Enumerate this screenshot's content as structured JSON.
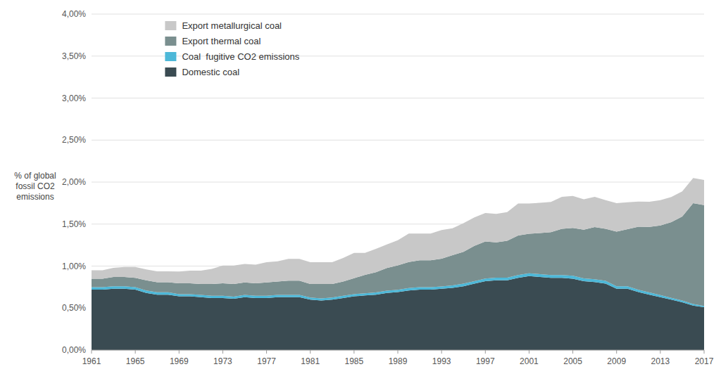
{
  "chart_data": {
    "type": "area",
    "stacked": true,
    "y_label": "% of global\nfossil CO2\nemissions",
    "x": [
      1961,
      1962,
      1963,
      1964,
      1965,
      1966,
      1967,
      1968,
      1969,
      1970,
      1971,
      1972,
      1973,
      1974,
      1975,
      1976,
      1977,
      1978,
      1979,
      1980,
      1981,
      1982,
      1983,
      1984,
      1985,
      1986,
      1987,
      1988,
      1989,
      1990,
      1991,
      1992,
      1993,
      1994,
      1995,
      1996,
      1997,
      1998,
      1999,
      2000,
      2001,
      2002,
      2003,
      2004,
      2005,
      2006,
      2007,
      2008,
      2009,
      2010,
      2011,
      2012,
      2013,
      2014,
      2015,
      2016,
      2017
    ],
    "series": [
      {
        "name": "Domestic coal",
        "color": "#3a4b52",
        "values": [
          0.0072,
          0.0072,
          0.0073,
          0.0073,
          0.0072,
          0.0068,
          0.0066,
          0.0066,
          0.0064,
          0.0064,
          0.0063,
          0.0062,
          0.0062,
          0.0061,
          0.0063,
          0.0062,
          0.0062,
          0.0063,
          0.0063,
          0.0063,
          0.006,
          0.0059,
          0.006,
          0.0062,
          0.0064,
          0.0065,
          0.0066,
          0.0068,
          0.0069,
          0.0071,
          0.0072,
          0.0072,
          0.0073,
          0.0074,
          0.0076,
          0.0079,
          0.0082,
          0.0083,
          0.0083,
          0.0086,
          0.0088,
          0.0087,
          0.0086,
          0.0086,
          0.0085,
          0.0082,
          0.0081,
          0.0079,
          0.0073,
          0.0073,
          0.0069,
          0.0066,
          0.0063,
          0.006,
          0.0057,
          0.0053,
          0.0051
        ]
      },
      {
        "name": "Coal  fugitive CO2 emissions",
        "color": "#4db8d8",
        "values": [
          0.0003,
          0.0003,
          0.0003,
          0.0003,
          0.0003,
          0.0003,
          0.00028,
          0.00028,
          0.00026,
          0.00026,
          0.00026,
          0.00026,
          0.00026,
          0.00026,
          0.00026,
          0.00026,
          0.00026,
          0.00026,
          0.00026,
          0.00026,
          0.00026,
          0.00026,
          0.00026,
          0.00026,
          0.00026,
          0.00026,
          0.00026,
          0.00028,
          0.00028,
          0.00028,
          0.00028,
          0.00028,
          0.00028,
          0.0003,
          0.0003,
          0.0003,
          0.00032,
          0.00032,
          0.00032,
          0.00034,
          0.00034,
          0.00034,
          0.00034,
          0.00034,
          0.00034,
          0.00034,
          0.00034,
          0.00034,
          0.0003,
          0.0003,
          0.00028,
          0.00026,
          0.00024,
          0.00022,
          0.0002,
          0.00018,
          0.00016
        ]
      },
      {
        "name": "Export thermal coal",
        "color": "#7a8f8f",
        "values": [
          0.001,
          0.001,
          0.0011,
          0.0011,
          0.0011,
          0.0012,
          0.0012,
          0.0012,
          0.0013,
          0.0013,
          0.0013,
          0.0014,
          0.0015,
          0.0015,
          0.0015,
          0.0015,
          0.0016,
          0.0016,
          0.0017,
          0.0017,
          0.0016,
          0.0017,
          0.0016,
          0.0017,
          0.0019,
          0.0022,
          0.0024,
          0.0027,
          0.0029,
          0.0031,
          0.0032,
          0.0032,
          0.0033,
          0.0036,
          0.0038,
          0.0042,
          0.0044,
          0.0042,
          0.0044,
          0.0047,
          0.0047,
          0.0049,
          0.0051,
          0.0055,
          0.0057,
          0.0058,
          0.0062,
          0.0062,
          0.0065,
          0.0068,
          0.0075,
          0.0078,
          0.0083,
          0.009,
          0.01,
          0.012,
          0.012
        ]
      },
      {
        "name": "Export metallurgical coal",
        "color": "#c8c8c8",
        "values": [
          0.001,
          0.001,
          0.0011,
          0.0012,
          0.0013,
          0.0013,
          0.0013,
          0.0013,
          0.0014,
          0.0015,
          0.0016,
          0.0018,
          0.0021,
          0.0022,
          0.0022,
          0.0022,
          0.0024,
          0.0024,
          0.0026,
          0.0026,
          0.0026,
          0.0026,
          0.0026,
          0.0028,
          0.003,
          0.0026,
          0.0028,
          0.0028,
          0.003,
          0.0034,
          0.0032,
          0.0032,
          0.0034,
          0.0032,
          0.0034,
          0.0034,
          0.0034,
          0.0034,
          0.0034,
          0.0038,
          0.0036,
          0.0036,
          0.0036,
          0.0038,
          0.0038,
          0.0036,
          0.0036,
          0.0034,
          0.0034,
          0.0032,
          0.003,
          0.003,
          0.003,
          0.003,
          0.003,
          0.003,
          0.003
        ]
      }
    ],
    "xlim": [
      1961,
      2017
    ],
    "xticks": [
      1961,
      1965,
      1969,
      1973,
      1977,
      1981,
      1985,
      1989,
      1993,
      1997,
      2001,
      2005,
      2009,
      2013,
      2017
    ],
    "ylim": [
      0,
      0.04
    ],
    "yticks": [
      {
        "value": 0.0,
        "label": "0,00%"
      },
      {
        "value": 0.005,
        "label": "0,50%"
      },
      {
        "value": 0.01,
        "label": "1,00%"
      },
      {
        "value": 0.015,
        "label": "1,50%"
      },
      {
        "value": 0.02,
        "label": "2,00%"
      },
      {
        "value": 0.025,
        "label": "2,50%"
      },
      {
        "value": 0.03,
        "label": "3,00%"
      },
      {
        "value": 0.035,
        "label": "3,50%"
      },
      {
        "value": 0.04,
        "label": "4,00%"
      }
    ],
    "grid": true,
    "legend": "upper left"
  }
}
